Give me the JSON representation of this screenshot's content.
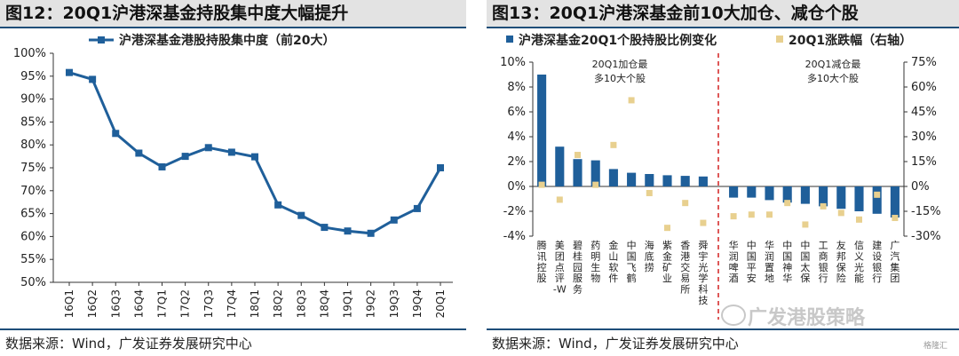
{
  "left_chart": {
    "title": "图12：20Q1沪港深基金持股集中度大幅提升",
    "source": "数据来源：Wind，广发证券发展研究中心",
    "chart_data": {
      "type": "line",
      "title": "图12：20Q1沪港深基金持股集中度大幅提升",
      "x": [
        "16Q1",
        "16Q2",
        "16Q3",
        "16Q4",
        "17Q1",
        "17Q2",
        "17Q3",
        "17Q4",
        "18Q1",
        "18Q2",
        "18Q3",
        "18Q4",
        "19Q1",
        "19Q2",
        "19Q3",
        "19Q4",
        "20Q1"
      ],
      "series": [
        {
          "name": "沪港深基金港股持股集中度（前20大）",
          "values": [
            95.8,
            94.3,
            82.5,
            78.2,
            75.2,
            77.5,
            79.4,
            78.4,
            77.4,
            66.9,
            64.6,
            62.0,
            61.2,
            60.7,
            63.6,
            66.1,
            75.0
          ]
        }
      ],
      "ylim": [
        50,
        100
      ],
      "yticks": [
        "50%",
        "55%",
        "60%",
        "65%",
        "70%",
        "75%",
        "80%",
        "85%",
        "90%",
        "95%",
        "100%"
      ],
      "legend_position": "top",
      "grid": false,
      "color": "#1f5f9a"
    }
  },
  "right_chart": {
    "title": "图13：20Q1沪港深基金前10大加仓、减仓个股",
    "source": "数据来源：Wind，广发证券发展研究中心",
    "chart_data": {
      "type": "bar",
      "title": "图13：20Q1沪港深基金前10大加仓、减仓个股",
      "categories_add": [
        "腾讯控股",
        "美团点评-W",
        "碧桂园服务",
        "药明生物",
        "金山软件",
        "中国飞鹤",
        "海底捞",
        "紫金矿业",
        "香港交易所",
        "舜宇光学科技"
      ],
      "categories_reduce": [
        "华润啤酒",
        "中国平安",
        "华润置地",
        "中国神华",
        "中国太保",
        "工商银行",
        "友邦保险",
        "信义光能",
        "建设银行",
        "广汽集团"
      ],
      "series": [
        {
          "name": "沪港深基金20Q1个股持股比例变化",
          "axis": "left",
          "color": "#1f5f9a",
          "values_add": [
            9.0,
            3.2,
            2.2,
            2.1,
            1.4,
            1.1,
            1.0,
            0.9,
            0.85,
            0.8
          ],
          "values_reduce": [
            -0.9,
            -0.9,
            -1.1,
            -1.3,
            -1.4,
            -1.6,
            -1.8,
            -2.0,
            -2.2,
            -2.5
          ]
        },
        {
          "name": "20Q1涨跌幅（右轴）",
          "axis": "right",
          "color": "#e8d08f",
          "values_add": [
            1,
            -8,
            19,
            1,
            25,
            52,
            -4,
            -25,
            -10,
            -22
          ],
          "values_reduce": [
            -18,
            -17,
            -17,
            -10,
            -23,
            -12,
            -16,
            -20,
            -5,
            -19
          ]
        }
      ],
      "ylim_left": [
        -4,
        10
      ],
      "yticks_left": [
        "-4%",
        "-2%",
        "0%",
        "2%",
        "4%",
        "6%",
        "8%",
        "10%"
      ],
      "ylim_right": [
        -30,
        75
      ],
      "yticks_right": [
        "-30%",
        "-15%",
        "0%",
        "15%",
        "30%",
        "45%",
        "60%",
        "75%"
      ],
      "annotations": [
        {
          "text_lines": [
            "20Q1加仓最",
            "多10大个股"
          ],
          "group": "add"
        },
        {
          "text_lines": [
            "20Q1减仓最",
            "多10大个股"
          ],
          "group": "reduce"
        }
      ],
      "divider_color": "#d32020",
      "legend_position": "top"
    }
  },
  "watermark": "广发港股策略",
  "badge": "格隆汇"
}
